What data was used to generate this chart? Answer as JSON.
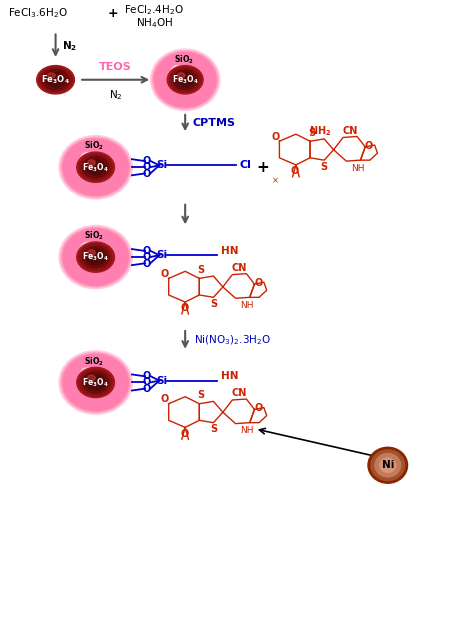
{
  "fig_width": 4.74,
  "fig_height": 6.18,
  "dpi": 100,
  "bg_color": "#ffffff",
  "pink_bright": "#FF4D94",
  "pink_mid": "#FF80B3",
  "pink_light": "#FFB3CC",
  "pink_pale": "#FFCCE0",
  "core_red1": "#8B1010",
  "core_red2": "#6B0A0A",
  "core_red3": "#500808",
  "red_struct": "#CC2200",
  "blue_bond": "#0000CC",
  "blue_text": "#0000BB",
  "arrow_gray": "#555555",
  "black": "#000000",
  "ni_brown": "#8B4513",
  "ni_tan": "#C4956A",
  "pink_text_teos": "#FF69B4",
  "xlim": [
    0,
    10
  ],
  "ylim": [
    0,
    13
  ]
}
